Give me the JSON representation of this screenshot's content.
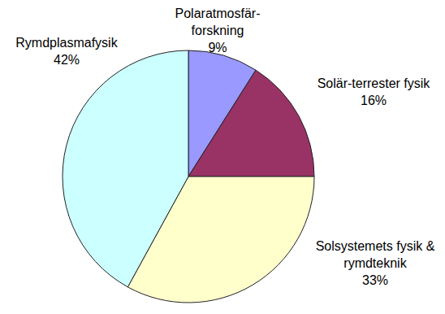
{
  "chart_data": {
    "type": "pie",
    "categories": [
      "Polaratmosfär-forskning",
      "Solär-terrester fysik",
      "Solsystemets fysik & rymdteknik",
      "Rymdplasmafysik"
    ],
    "values": [
      9,
      16,
      33,
      42
    ],
    "value_labels": [
      "9%",
      "16%",
      "33%",
      "42%"
    ],
    "colors": [
      "#9999ff",
      "#993366",
      "#ffffcc",
      "#ccffff"
    ],
    "data_labels": true
  }
}
